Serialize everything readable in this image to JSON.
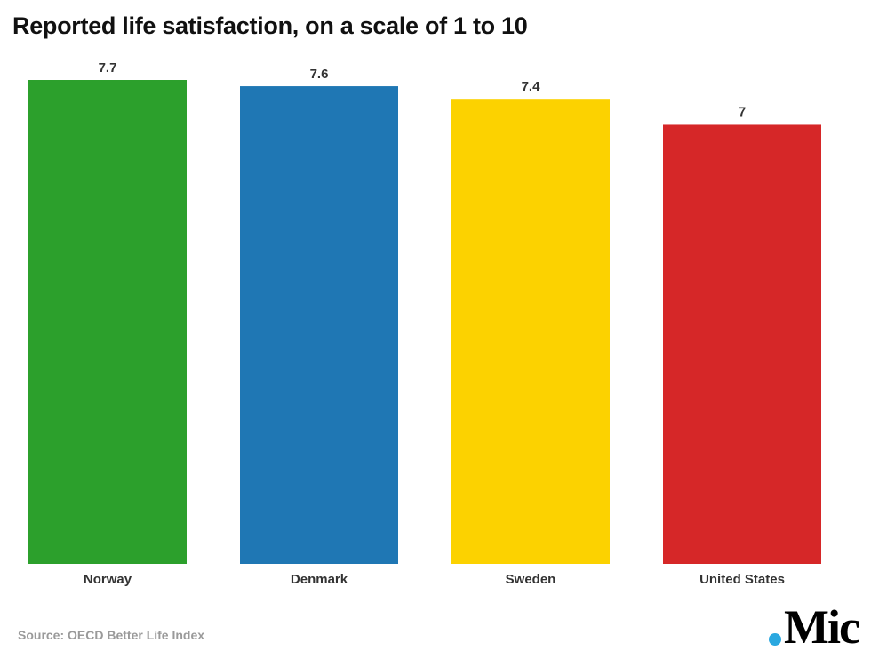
{
  "title": "Reported life satisfaction, on a scale of 1 to 10",
  "source": "Source: OECD Better Life Index",
  "logo": {
    "text": "Mic",
    "dot_color": "#2aa8e0"
  },
  "chart_data": {
    "type": "bar",
    "title": "Reported life satisfaction, on a scale of 1 to 10",
    "categories": [
      "Norway",
      "Denmark",
      "Sweden",
      "United States"
    ],
    "values": [
      7.7,
      7.6,
      7.4,
      7
    ],
    "value_labels": [
      "7.7",
      "7.6",
      "7.4",
      "7"
    ],
    "colors": [
      "#2ca02c",
      "#1f77b4",
      "#fcd200",
      "#d62728"
    ],
    "xlabel": "",
    "ylabel": "",
    "ylim": [
      0,
      7.7
    ],
    "grid": false,
    "legend": "none"
  }
}
